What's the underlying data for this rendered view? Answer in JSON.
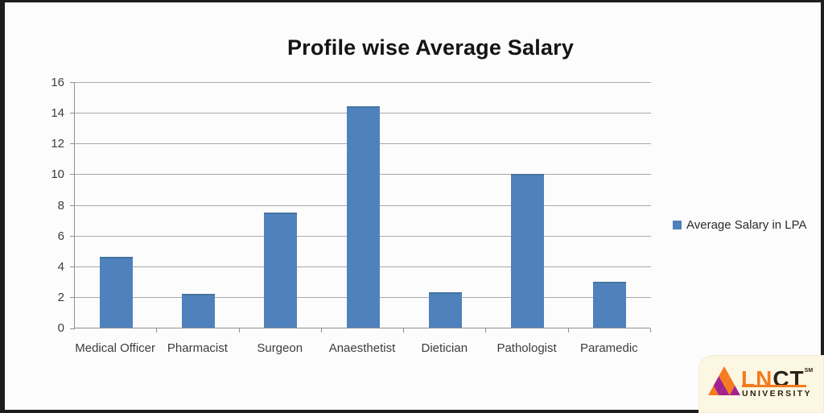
{
  "chart_data": {
    "type": "bar",
    "title": "Profile wise Average Salary",
    "categories": [
      "Medical Officer",
      "Pharmacist",
      "Surgeon",
      "Anaesthetist",
      "Dietician",
      "Pathologist",
      "Paramedic"
    ],
    "values": [
      4.6,
      2.2,
      7.5,
      14.4,
      2.3,
      10,
      3
    ],
    "series_name": "Average Salary in LPA",
    "xlabel": "",
    "ylabel": "",
    "ylim": [
      0,
      16
    ],
    "yticks": [
      0,
      2,
      4,
      6,
      8,
      10,
      12,
      14,
      16
    ],
    "grid": true,
    "legend_position": "right",
    "bar_color": "#4f81bd"
  },
  "legend": {
    "swatch_color": "#4f81bd"
  },
  "logo": {
    "brand_left": "LN",
    "brand_right": "CT",
    "trademark": "SM",
    "subtitle": "UNIVERSITY",
    "colors": {
      "orange": "#f47b20",
      "magenta": "#a3238e",
      "dark": "#2b2118",
      "background": "#fbf7e2"
    }
  }
}
